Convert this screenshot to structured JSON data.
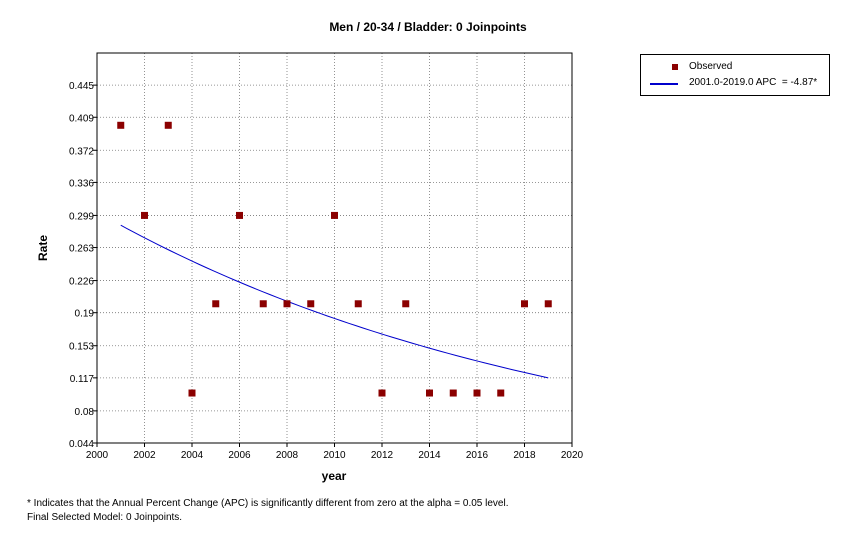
{
  "chart_data": {
    "type": "scatter",
    "title": "Men / 20-34 / Bladder: 0 Joinpoints",
    "xlabel": "year",
    "ylabel": "Rate",
    "xlim": [
      2000,
      2020
    ],
    "ylim": [
      0.044,
      0.481
    ],
    "x_ticks": [
      2000,
      2002,
      2004,
      2006,
      2008,
      2010,
      2012,
      2014,
      2016,
      2018,
      2020
    ],
    "y_ticks": [
      0.044,
      0.08,
      0.117,
      0.153,
      0.19,
      0.226,
      0.263,
      0.299,
      0.336,
      0.372,
      0.409,
      0.445
    ],
    "y_tick_labels": [
      "0.044",
      "0.08",
      "0.117",
      "0.153",
      "0.19",
      "0.226",
      "0.263",
      "0.299",
      "0.336",
      "0.372",
      "0.409",
      "0.445"
    ],
    "grid": true,
    "legend_position": "top-right-outside",
    "series": [
      {
        "name": "Observed",
        "kind": "scatter",
        "color": "#8b0000",
        "x": [
          2001,
          2002,
          2003,
          2004,
          2005,
          2006,
          2007,
          2008,
          2009,
          2010,
          2011,
          2012,
          2013,
          2014,
          2015,
          2016,
          2017,
          2018,
          2019
        ],
        "y": [
          0.4,
          0.299,
          0.4,
          0.1,
          0.2,
          0.299,
          0.2,
          0.2,
          0.2,
          0.299,
          0.2,
          0.1,
          0.2,
          0.1,
          0.1,
          0.1,
          0.1,
          0.2,
          0.2
        ]
      },
      {
        "name": "2001.0-2019.0 APC  = -4.87*",
        "kind": "line",
        "color": "#0000cc",
        "x": [
          2001,
          2003,
          2005,
          2007,
          2009,
          2011,
          2013,
          2015,
          2017,
          2019
        ],
        "y": [
          0.288,
          0.261,
          0.236,
          0.213,
          0.193,
          0.175,
          0.158,
          0.143,
          0.129,
          0.117
        ]
      }
    ]
  },
  "footnotes": [
    "* Indicates that the Annual Percent Change (APC) is significantly different from zero at the alpha = 0.05 level.",
    "Final Selected Model: 0 Joinpoints."
  ]
}
